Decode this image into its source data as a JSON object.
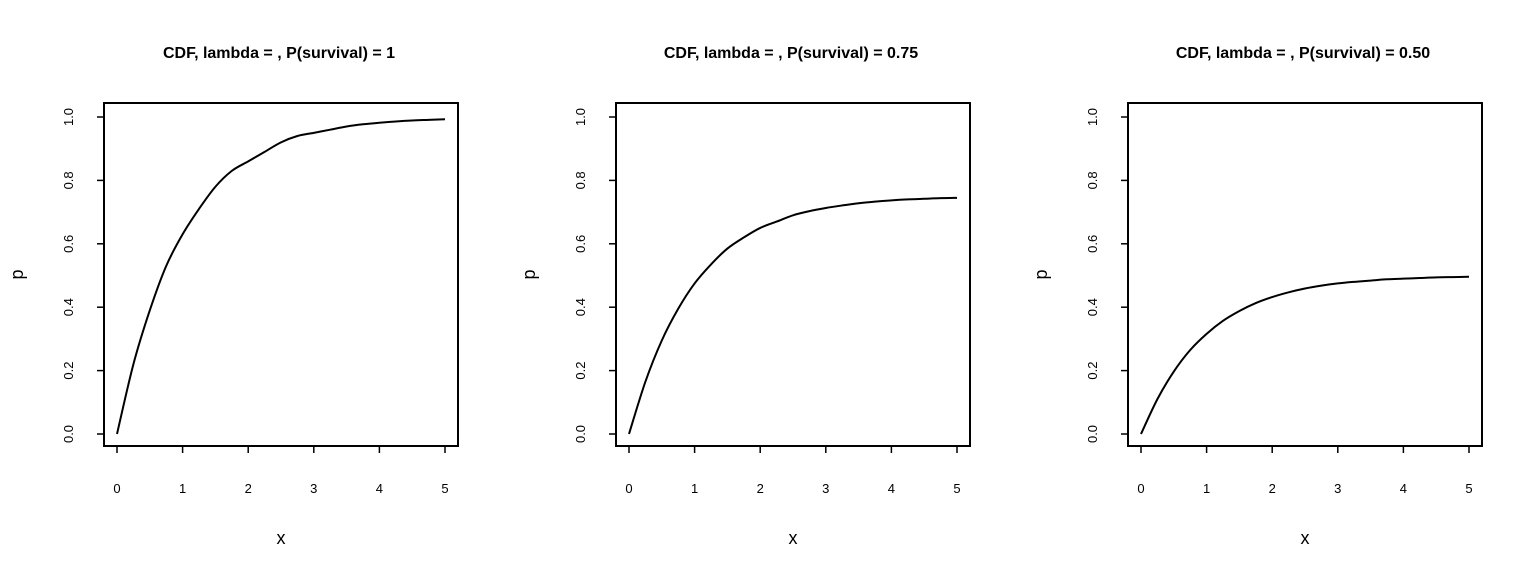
{
  "chart_data": [
    {
      "type": "line",
      "title": "CDF, lambda = , P(survival) = 1",
      "xlabel": "x",
      "ylabel": "p",
      "xlim": [
        0,
        5
      ],
      "ylim": [
        0,
        1
      ],
      "x_ticks": [
        "0",
        "1",
        "2",
        "3",
        "4",
        "5"
      ],
      "y_ticks": [
        "0.0",
        "0.2",
        "0.4",
        "0.6",
        "0.8",
        "1.0"
      ],
      "grid": false,
      "series": [
        {
          "x": [
            0,
            0.25,
            0.5,
            0.75,
            1,
            1.25,
            1.5,
            1.75,
            2,
            2.25,
            2.5,
            2.75,
            3,
            3.25,
            3.5,
            3.75,
            4,
            4.25,
            4.5,
            4.75,
            5
          ],
          "values": [
            0,
            0.22,
            0.39,
            0.53,
            0.63,
            0.71,
            0.78,
            0.83,
            0.86,
            0.89,
            0.92,
            0.94,
            0.95,
            0.96,
            0.97,
            0.977,
            0.982,
            0.986,
            0.989,
            0.991,
            0.993
          ]
        }
      ]
    },
    {
      "type": "line",
      "title": "CDF, lambda = , P(survival) = 0.75",
      "xlabel": "x",
      "ylabel": "p",
      "xlim": [
        0,
        5
      ],
      "ylim": [
        0,
        1
      ],
      "x_ticks": [
        "0",
        "1",
        "2",
        "3",
        "4",
        "5"
      ],
      "y_ticks": [
        "0.0",
        "0.2",
        "0.4",
        "0.6",
        "0.8",
        "1.0"
      ],
      "grid": false,
      "series": [
        {
          "x": [
            0,
            0.25,
            0.5,
            0.75,
            1,
            1.25,
            1.5,
            1.75,
            2,
            2.25,
            2.5,
            2.75,
            3,
            3.25,
            3.5,
            3.75,
            4,
            4.25,
            4.5,
            4.75,
            5
          ],
          "values": [
            0,
            0.165,
            0.295,
            0.395,
            0.475,
            0.535,
            0.585,
            0.62,
            0.65,
            0.67,
            0.69,
            0.703,
            0.713,
            0.721,
            0.728,
            0.733,
            0.737,
            0.74,
            0.742,
            0.744,
            0.745
          ]
        }
      ]
    },
    {
      "type": "line",
      "title": "CDF, lambda = , P(survival) = 0.50",
      "xlabel": "x",
      "ylabel": "p",
      "xlim": [
        0,
        5
      ],
      "ylim": [
        0,
        1
      ],
      "x_ticks": [
        "0",
        "1",
        "2",
        "3",
        "4",
        "5"
      ],
      "y_ticks": [
        "0.0",
        "0.2",
        "0.4",
        "0.6",
        "0.8",
        "1.0"
      ],
      "grid": false,
      "series": [
        {
          "x": [
            0,
            0.25,
            0.5,
            0.75,
            1,
            1.25,
            1.5,
            1.75,
            2,
            2.25,
            2.5,
            2.75,
            3,
            3.25,
            3.5,
            3.75,
            4,
            4.25,
            4.5,
            4.75,
            5
          ],
          "values": [
            0,
            0.11,
            0.197,
            0.265,
            0.316,
            0.357,
            0.388,
            0.413,
            0.432,
            0.447,
            0.459,
            0.468,
            0.475,
            0.48,
            0.484,
            0.488,
            0.49,
            0.492,
            0.494,
            0.495,
            0.496
          ]
        }
      ]
    }
  ]
}
